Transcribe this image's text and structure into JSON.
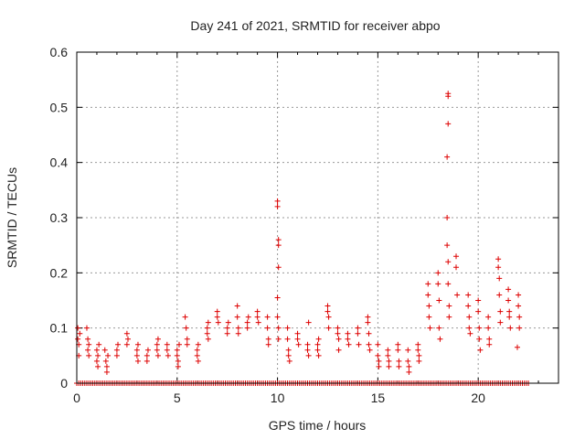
{
  "chart_data": {
    "type": "scatter",
    "title": "Day 241 of 2021, SRMTID for receiver abpo",
    "xlabel": "GPS time / hours",
    "ylabel": "SRMTID / TECUs",
    "xlim": [
      0,
      24
    ],
    "ylim": [
      0,
      0.6
    ],
    "xticks": [
      0,
      5,
      10,
      15,
      20
    ],
    "yticks": [
      0,
      0.1,
      0.2,
      0.3,
      0.4,
      0.5,
      0.6
    ],
    "xtick_labels": [
      "0",
      "5",
      "10",
      "15",
      "20"
    ],
    "ytick_labels": [
      "0",
      "0.1",
      "0.2",
      "0.3",
      "0.4",
      "0.5",
      "0.6"
    ],
    "grid": true,
    "marker": "+",
    "color": "#dd0000",
    "series": [
      {
        "name": "srmtid",
        "points": [
          [
            0.05,
            0.1
          ],
          [
            0.05,
            0.08
          ],
          [
            0.1,
            0.07
          ],
          [
            0.1,
            0.05
          ],
          [
            0.15,
            0.09
          ],
          [
            0.5,
            0.1
          ],
          [
            0.55,
            0.08
          ],
          [
            0.55,
            0.06
          ],
          [
            0.6,
            0.05
          ],
          [
            0.6,
            0.07
          ],
          [
            1.0,
            0.06
          ],
          [
            1.0,
            0.04
          ],
          [
            1.05,
            0.05
          ],
          [
            1.05,
            0.03
          ],
          [
            1.1,
            0.07
          ],
          [
            1.4,
            0.06
          ],
          [
            1.45,
            0.04
          ],
          [
            1.5,
            0.03
          ],
          [
            1.5,
            0.02
          ],
          [
            1.55,
            0.05
          ],
          [
            2.0,
            0.06
          ],
          [
            2.0,
            0.05
          ],
          [
            2.05,
            0.07
          ],
          [
            2.5,
            0.09
          ],
          [
            2.5,
            0.07
          ],
          [
            2.55,
            0.08
          ],
          [
            3.0,
            0.06
          ],
          [
            3.0,
            0.05
          ],
          [
            3.05,
            0.07
          ],
          [
            3.05,
            0.04
          ],
          [
            3.5,
            0.05
          ],
          [
            3.5,
            0.04
          ],
          [
            3.55,
            0.06
          ],
          [
            4.0,
            0.07
          ],
          [
            4.0,
            0.06
          ],
          [
            4.05,
            0.05
          ],
          [
            4.05,
            0.08
          ],
          [
            4.5,
            0.07
          ],
          [
            4.5,
            0.06
          ],
          [
            4.55,
            0.05
          ],
          [
            5.0,
            0.06
          ],
          [
            5.0,
            0.05
          ],
          [
            5.05,
            0.04
          ],
          [
            5.05,
            0.03
          ],
          [
            5.1,
            0.07
          ],
          [
            5.4,
            0.12
          ],
          [
            5.45,
            0.1
          ],
          [
            5.5,
            0.08
          ],
          [
            5.5,
            0.07
          ],
          [
            6.0,
            0.06
          ],
          [
            6.0,
            0.05
          ],
          [
            6.05,
            0.04
          ],
          [
            6.05,
            0.07
          ],
          [
            6.5,
            0.1
          ],
          [
            6.5,
            0.09
          ],
          [
            6.55,
            0.08
          ],
          [
            6.55,
            0.11
          ],
          [
            7.0,
            0.13
          ],
          [
            7.0,
            0.12
          ],
          [
            7.05,
            0.11
          ],
          [
            7.5,
            0.1
          ],
          [
            7.5,
            0.09
          ],
          [
            7.55,
            0.11
          ],
          [
            8.0,
            0.14
          ],
          [
            8.0,
            0.12
          ],
          [
            8.05,
            0.1
          ],
          [
            8.05,
            0.09
          ],
          [
            8.5,
            0.11
          ],
          [
            8.5,
            0.1
          ],
          [
            8.55,
            0.12
          ],
          [
            9.0,
            0.13
          ],
          [
            9.0,
            0.12
          ],
          [
            9.05,
            0.11
          ],
          [
            9.5,
            0.12
          ],
          [
            9.5,
            0.1
          ],
          [
            9.55,
            0.08
          ],
          [
            9.55,
            0.07
          ],
          [
            10.0,
            0.33
          ],
          [
            10.0,
            0.32
          ],
          [
            10.05,
            0.26
          ],
          [
            10.05,
            0.25
          ],
          [
            10.05,
            0.21
          ],
          [
            10.0,
            0.155
          ],
          [
            10.0,
            0.12
          ],
          [
            10.05,
            0.1
          ],
          [
            10.05,
            0.08
          ],
          [
            10.5,
            0.1
          ],
          [
            10.5,
            0.08
          ],
          [
            10.55,
            0.06
          ],
          [
            10.55,
            0.05
          ],
          [
            10.6,
            0.04
          ],
          [
            11.0,
            0.09
          ],
          [
            11.0,
            0.08
          ],
          [
            11.05,
            0.07
          ],
          [
            11.5,
            0.07
          ],
          [
            11.5,
            0.06
          ],
          [
            11.55,
            0.05
          ],
          [
            11.55,
            0.11
          ],
          [
            12.0,
            0.07
          ],
          [
            12.0,
            0.06
          ],
          [
            12.05,
            0.05
          ],
          [
            12.05,
            0.08
          ],
          [
            12.5,
            0.14
          ],
          [
            12.5,
            0.13
          ],
          [
            12.55,
            0.12
          ],
          [
            12.55,
            0.1
          ],
          [
            13.0,
            0.1
          ],
          [
            13.0,
            0.09
          ],
          [
            13.05,
            0.08
          ],
          [
            13.05,
            0.06
          ],
          [
            13.5,
            0.09
          ],
          [
            13.5,
            0.08
          ],
          [
            13.55,
            0.07
          ],
          [
            14.0,
            0.1
          ],
          [
            14.0,
            0.09
          ],
          [
            14.05,
            0.07
          ],
          [
            14.5,
            0.12
          ],
          [
            14.5,
            0.11
          ],
          [
            14.55,
            0.09
          ],
          [
            14.55,
            0.07
          ],
          [
            14.6,
            0.06
          ],
          [
            15.0,
            0.07
          ],
          [
            15.0,
            0.05
          ],
          [
            15.05,
            0.04
          ],
          [
            15.05,
            0.03
          ],
          [
            15.5,
            0.06
          ],
          [
            15.5,
            0.05
          ],
          [
            15.55,
            0.04
          ],
          [
            15.55,
            0.03
          ],
          [
            16.0,
            0.07
          ],
          [
            16.0,
            0.06
          ],
          [
            16.05,
            0.04
          ],
          [
            16.05,
            0.03
          ],
          [
            16.5,
            0.06
          ],
          [
            16.5,
            0.04
          ],
          [
            16.55,
            0.03
          ],
          [
            16.55,
            0.02
          ],
          [
            17.0,
            0.07
          ],
          [
            17.0,
            0.06
          ],
          [
            17.05,
            0.05
          ],
          [
            17.05,
            0.04
          ],
          [
            17.5,
            0.18
          ],
          [
            17.5,
            0.16
          ],
          [
            17.55,
            0.14
          ],
          [
            17.55,
            0.12
          ],
          [
            17.6,
            0.1
          ],
          [
            18.0,
            0.2
          ],
          [
            18.0,
            0.18
          ],
          [
            18.05,
            0.15
          ],
          [
            18.05,
            0.1
          ],
          [
            18.1,
            0.08
          ],
          [
            18.5,
            0.525
          ],
          [
            18.5,
            0.52
          ],
          [
            18.5,
            0.47
          ],
          [
            18.45,
            0.41
          ],
          [
            18.45,
            0.3
          ],
          [
            18.45,
            0.25
          ],
          [
            18.5,
            0.22
          ],
          [
            18.5,
            0.18
          ],
          [
            18.55,
            0.14
          ],
          [
            18.55,
            0.12
          ],
          [
            18.9,
            0.23
          ],
          [
            18.9,
            0.21
          ],
          [
            18.95,
            0.16
          ],
          [
            19.5,
            0.16
          ],
          [
            19.5,
            0.14
          ],
          [
            19.55,
            0.12
          ],
          [
            19.55,
            0.1
          ],
          [
            19.6,
            0.09
          ],
          [
            20.0,
            0.15
          ],
          [
            20.0,
            0.13
          ],
          [
            20.05,
            0.1
          ],
          [
            20.05,
            0.08
          ],
          [
            20.1,
            0.06
          ],
          [
            20.5,
            0.12
          ],
          [
            20.5,
            0.1
          ],
          [
            20.55,
            0.08
          ],
          [
            20.55,
            0.07
          ],
          [
            21.0,
            0.225
          ],
          [
            21.0,
            0.21
          ],
          [
            21.05,
            0.19
          ],
          [
            21.05,
            0.16
          ],
          [
            21.1,
            0.13
          ],
          [
            21.1,
            0.11
          ],
          [
            21.5,
            0.17
          ],
          [
            21.5,
            0.15
          ],
          [
            21.55,
            0.13
          ],
          [
            21.55,
            0.12
          ],
          [
            21.6,
            0.1
          ],
          [
            22.0,
            0.16
          ],
          [
            22.0,
            0.14
          ],
          [
            22.05,
            0.12
          ],
          [
            22.05,
            0.1
          ],
          [
            21.95,
            0.065
          ]
        ],
        "zero_range": [
          0,
          22.5
        ]
      }
    ]
  }
}
